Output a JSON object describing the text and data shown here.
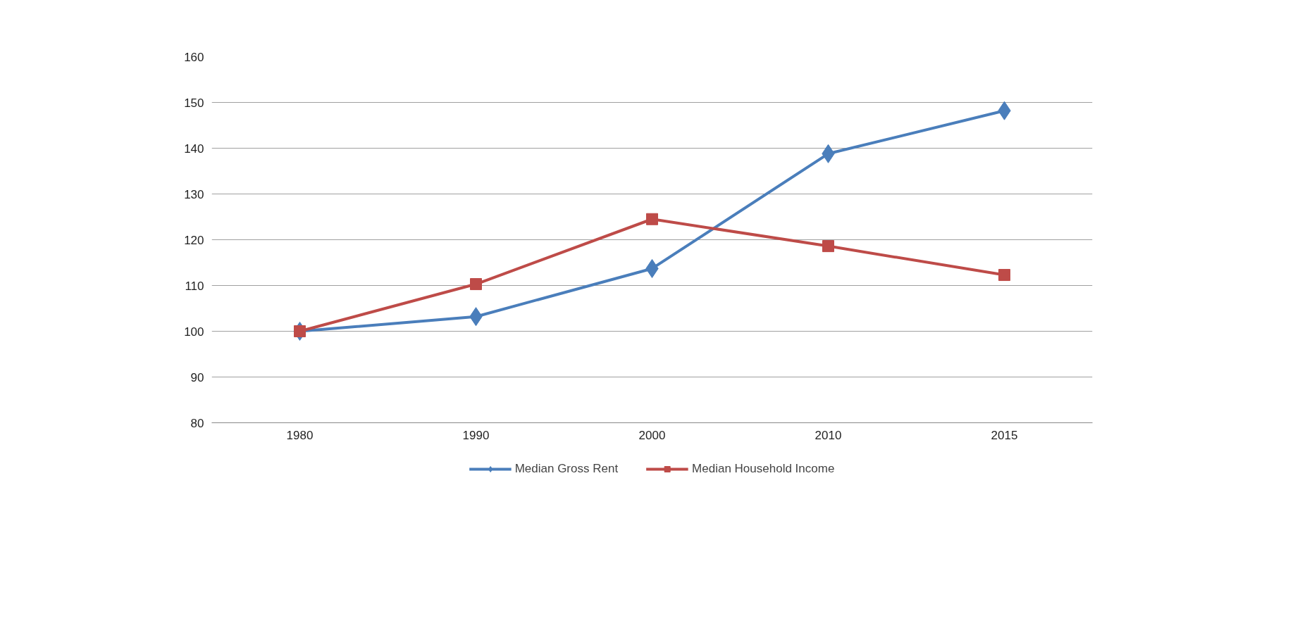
{
  "chart_data": {
    "type": "line",
    "categories": [
      "1980",
      "1990",
      "2000",
      "2010",
      "2015"
    ],
    "series": [
      {
        "name": "Median Gross Rent",
        "color": "#4a7ebb",
        "marker": "diamond",
        "values": [
          100,
          103.2,
          113.7,
          138.8,
          148.2
        ]
      },
      {
        "name": "Median Household Income",
        "color": "#be4b48",
        "marker": "square",
        "values": [
          100,
          110.3,
          124.5,
          118.6,
          112.3
        ]
      }
    ],
    "ylim": [
      80,
      160
    ],
    "yticks": [
      80,
      90,
      100,
      110,
      120,
      130,
      140,
      150,
      160
    ],
    "grid": "y",
    "legend": "bottom",
    "line_style": "solid"
  }
}
